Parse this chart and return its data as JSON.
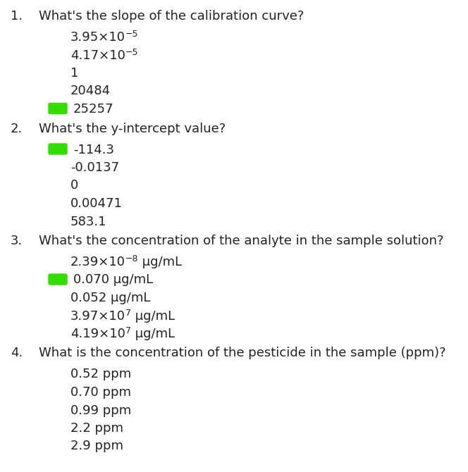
{
  "bg_color": "#ffffff",
  "text_color": "#222222",
  "correct_color": "#33dd00",
  "font_size": 13.0,
  "super_font_size": 9.0,
  "fig_width": 6.64,
  "fig_height": 6.7,
  "dpi": 100,
  "questions": [
    {
      "number": "1.",
      "text": "What's the slope of the calibration curve?",
      "answers": [
        {
          "parts": [
            {
              "t": "3.95×10",
              "s": "−5"
            },
            {
              "t": " "
            }
          ],
          "correct": false
        },
        {
          "parts": [
            {
              "t": "4.17×10",
              "s": "−5"
            },
            {
              "t": " "
            }
          ],
          "correct": false
        },
        {
          "parts": [
            {
              "t": "1"
            }
          ],
          "correct": false
        },
        {
          "parts": [
            {
              "t": "20484"
            }
          ],
          "correct": false
        },
        {
          "parts": [
            {
              "t": "25257"
            }
          ],
          "correct": true
        }
      ]
    },
    {
      "number": "2.",
      "text": "What's the y-intercept value?",
      "answers": [
        {
          "parts": [
            {
              "t": "-114.3"
            }
          ],
          "correct": true
        },
        {
          "parts": [
            {
              "t": "-0.0137"
            }
          ],
          "correct": false
        },
        {
          "parts": [
            {
              "t": "0"
            }
          ],
          "correct": false
        },
        {
          "parts": [
            {
              "t": "0.00471"
            }
          ],
          "correct": false
        },
        {
          "parts": [
            {
              "t": "583.1"
            }
          ],
          "correct": false
        }
      ]
    },
    {
      "number": "3.",
      "text": "What's the concentration of the analyte in the sample solution?",
      "answers": [
        {
          "parts": [
            {
              "t": "2.39×10",
              "s": "−8"
            },
            {
              "t": " μg/mL"
            }
          ],
          "correct": false
        },
        {
          "parts": [
            {
              "t": "0.070 μg/mL"
            }
          ],
          "correct": true
        },
        {
          "parts": [
            {
              "t": "0.052 μg/mL"
            }
          ],
          "correct": false
        },
        {
          "parts": [
            {
              "t": "3.97×10",
              "s": "7"
            },
            {
              "t": " μg/mL"
            }
          ],
          "correct": false
        },
        {
          "parts": [
            {
              "t": "4.19×10",
              "s": "7"
            },
            {
              "t": " μg/mL"
            }
          ],
          "correct": false
        }
      ]
    },
    {
      "number": "4.",
      "text": "What is the concentration of the pesticide in the sample (ppm)?",
      "answers": [
        {
          "parts": [
            {
              "t": "0.52 ppm"
            }
          ],
          "correct": false
        },
        {
          "parts": [
            {
              "t": "0.70 ppm"
            }
          ],
          "correct": false
        },
        {
          "parts": [
            {
              "t": "0.99 ppm"
            }
          ],
          "correct": false
        },
        {
          "parts": [
            {
              "t": "2.2 ppm"
            }
          ],
          "correct": false
        },
        {
          "parts": [
            {
              "t": "2.9 ppm"
            }
          ],
          "correct": false
        }
      ]
    }
  ]
}
